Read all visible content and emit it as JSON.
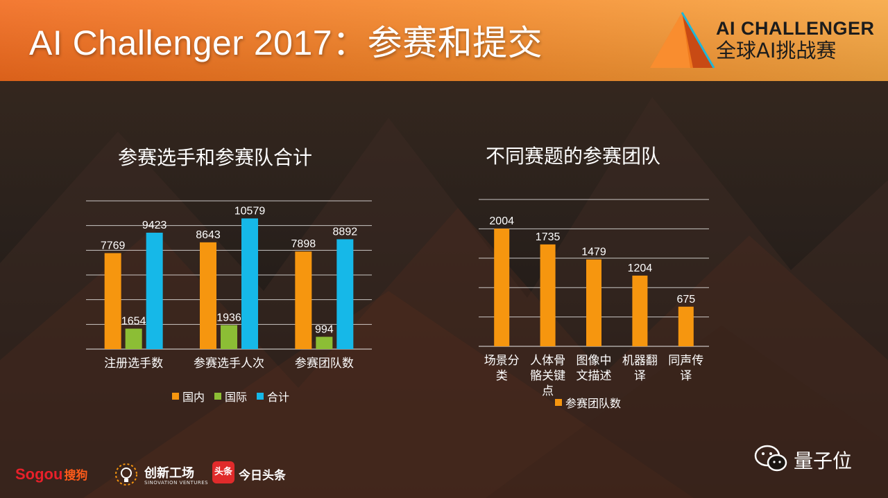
{
  "slide": {
    "title": "AI Challenger 2017：参赛和提交",
    "logo_en": "AI CHALLENGER",
    "logo_cn": "全球AI挑战赛",
    "colors": {
      "header_orange": "#f07a1e",
      "orange": "#f6960f",
      "green": "#8cbe35",
      "blue": "#16b8e8",
      "grid": "#ffffff"
    }
  },
  "chart_data": [
    {
      "type": "bar",
      "title": "参赛选手和参赛队合计",
      "categories": [
        "注册选手数",
        "参赛选手人次",
        "参赛团队数"
      ],
      "series": [
        {
          "name": "国内",
          "values": [
            7769,
            8643,
            7898
          ],
          "color": "#f6960f"
        },
        {
          "name": "国际",
          "values": [
            1654,
            1936,
            994
          ],
          "color": "#8cbe35"
        },
        {
          "name": "合计",
          "values": [
            9423,
            10579,
            8892
          ],
          "color": "#16b8e8"
        }
      ],
      "ylim": [
        0,
        12000
      ],
      "grid": true,
      "legend": "bottom",
      "data_labels": true
    },
    {
      "type": "bar",
      "title": "不同赛题的参赛团队",
      "categories": [
        "场景分\n类",
        "人体骨\n骼关键\n点",
        "图像中\n文描述",
        "机器翻\n译",
        "同声传\n译"
      ],
      "series": [
        {
          "name": "参赛团队数",
          "values": [
            2004,
            1735,
            1479,
            1204,
            675
          ],
          "color": "#f6960f"
        }
      ],
      "ylim": [
        0,
        2500
      ],
      "grid": true,
      "legend": "bottom",
      "data_labels": true
    }
  ],
  "footer": {
    "sogou_en": "Sogou",
    "sogou_cn": "搜狗",
    "sinovation_cn": "创新工场",
    "sinovation_en": "SINOVATION VENTURES",
    "toutiao_badge": "头条",
    "toutiao_cn": "今日头条",
    "watermark": "量子位"
  }
}
